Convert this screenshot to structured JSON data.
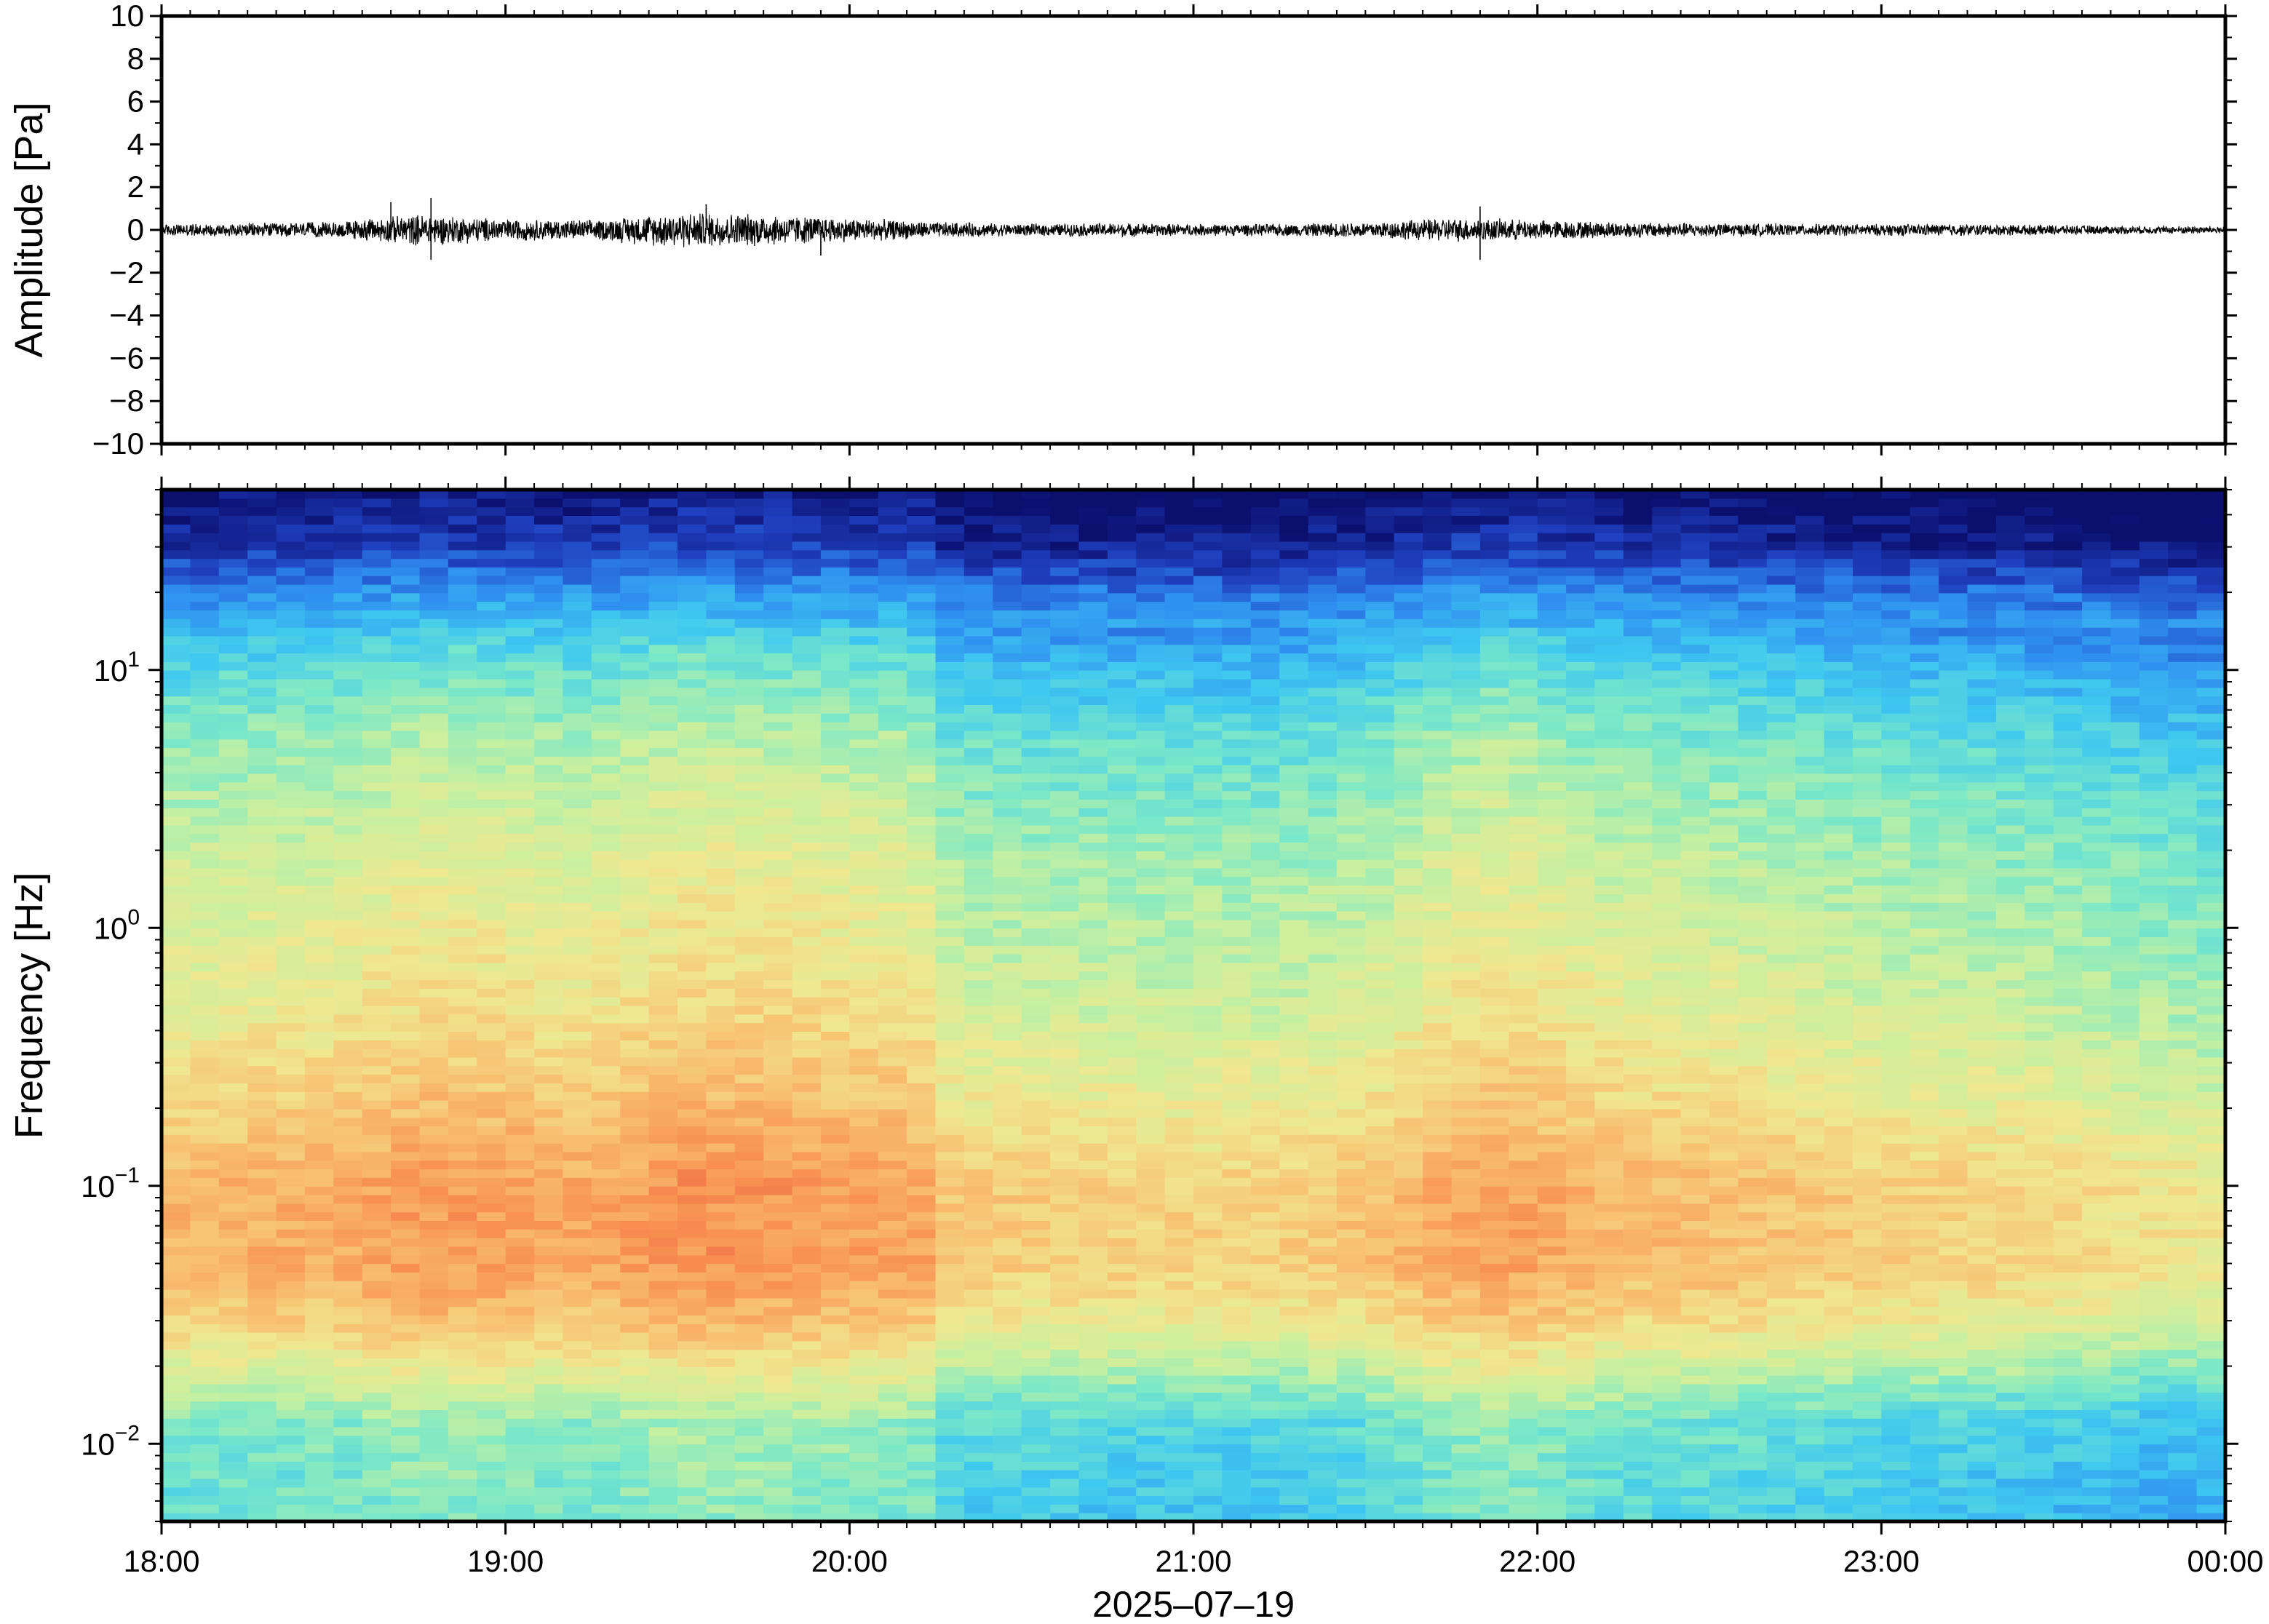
{
  "chart_data": [
    {
      "type": "line",
      "ylabel": "Amplitude [Pa]",
      "ylim": [
        -10,
        10
      ],
      "yticks": [
        "10",
        "8",
        "6",
        "4",
        "2",
        "0",
        "−2",
        "−4",
        "−6",
        "−8",
        "−10"
      ],
      "x_range": [
        "18:00",
        "00:00"
      ],
      "series": [
        {
          "color": "#000000",
          "envelope_time_hours": [
            18.0,
            18.25,
            18.5,
            18.75,
            19.0,
            19.25,
            19.5,
            19.75,
            20.0,
            20.25,
            20.5,
            20.75,
            21.0,
            21.25,
            21.5,
            21.75,
            22.0,
            22.25,
            22.5,
            22.75,
            23.0,
            23.25,
            23.5,
            23.75,
            24.0
          ],
          "envelope_pa": [
            0.3,
            0.35,
            0.4,
            0.8,
            0.55,
            0.5,
            0.9,
            0.8,
            0.6,
            0.4,
            0.3,
            0.35,
            0.3,
            0.3,
            0.4,
            0.6,
            0.5,
            0.4,
            0.35,
            0.3,
            0.3,
            0.3,
            0.25,
            0.2,
            0.2
          ],
          "peaks": [
            {
              "time": "18:40",
              "value_pa": 1.3
            },
            {
              "time": "18:47",
              "value_pa": 1.5
            },
            {
              "time": "18:47",
              "value_pa": -1.4
            },
            {
              "time": "19:35",
              "value_pa": 1.2
            },
            {
              "time": "19:55",
              "value_pa": -1.2
            },
            {
              "time": "21:50",
              "value_pa": 1.1
            },
            {
              "time": "21:50",
              "value_pa": -1.4
            }
          ]
        }
      ]
    },
    {
      "type": "heatmap",
      "ylabel": "Frequency [Hz]",
      "yscale": "log",
      "ylim": [
        0.005,
        50
      ],
      "yticks": [
        {
          "base": "10",
          "exp": "1",
          "value": 10
        },
        {
          "base": "10",
          "exp": "0",
          "value": 1
        },
        {
          "base": "10",
          "exp": "−1",
          "value": 0.1
        },
        {
          "base": "10",
          "exp": "−2",
          "value": 0.01
        }
      ],
      "xticks": [
        "18:00",
        "19:00",
        "20:00",
        "21:00",
        "22:00",
        "23:00",
        "00:00"
      ],
      "xlabel": "2025–07–19",
      "colormap": [
        "#0b0f6e",
        "#1f3fbf",
        "#2f8ff0",
        "#3fc8f0",
        "#7ae8c8",
        "#c8f0a0",
        "#f0e890",
        "#f8c070",
        "#f89050",
        "#e85040"
      ],
      "level_by_time": {
        "time_hours": [
          18.0,
          18.5,
          18.75,
          19.0,
          19.25,
          19.5,
          19.75,
          20.0,
          20.2,
          20.3,
          20.5,
          21.0,
          21.25,
          21.5,
          21.75,
          21.9,
          22.25,
          22.5,
          23.0,
          23.5,
          24.0
        ],
        "relative_power": [
          0.0,
          0.02,
          0.06,
          0.05,
          0.03,
          0.08,
          0.07,
          0.05,
          0.04,
          -0.05,
          -0.06,
          -0.07,
          -0.07,
          -0.04,
          0.03,
          0.05,
          -0.01,
          -0.02,
          -0.06,
          -0.09,
          -0.14
        ]
      },
      "level_by_frequency": {
        "frequency_hz": [
          50,
          30,
          20,
          10,
          5,
          2,
          1,
          0.5,
          0.2,
          0.1,
          0.05,
          0.03,
          0.02,
          0.012,
          0.005
        ],
        "relative_power": [
          0.0,
          0.08,
          0.22,
          0.38,
          0.48,
          0.56,
          0.6,
          0.64,
          0.72,
          0.8,
          0.8,
          0.72,
          0.6,
          0.44,
          0.4
        ]
      }
    }
  ]
}
